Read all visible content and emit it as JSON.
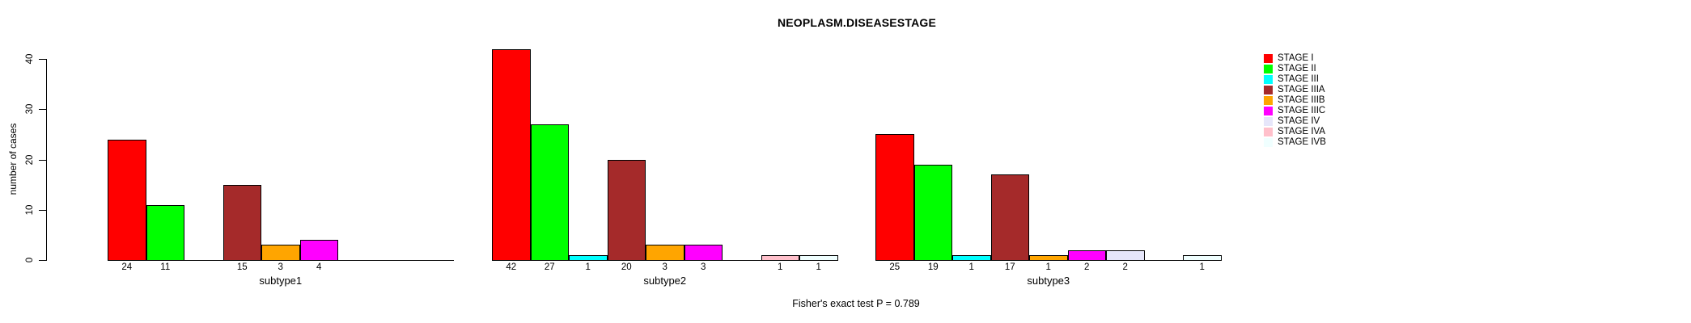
{
  "chart_data": {
    "type": "bar",
    "title": "NEOPLASM.DISEASESTAGE",
    "ylabel": "number of cases",
    "xlabel": "",
    "ylim": [
      0,
      40
    ],
    "yticks": [
      0,
      10,
      20,
      30,
      40
    ],
    "grid": false,
    "legend_position": "right",
    "bar_value_labels": "values shown below axis only for non-zero bars",
    "annotation": "Fisher's exact test P = 0.789",
    "categories": [
      "subtype1",
      "subtype2",
      "subtype3"
    ],
    "series": [
      {
        "name": "STAGE I",
        "color": "#FF0000",
        "values": [
          24,
          42,
          25
        ]
      },
      {
        "name": "STAGE II",
        "color": "#00FF00",
        "values": [
          11,
          27,
          19
        ]
      },
      {
        "name": "STAGE III",
        "color": "#00FFFF",
        "values": [
          0,
          1,
          1
        ]
      },
      {
        "name": "STAGE IIIA",
        "color": "#A52A2A",
        "values": [
          15,
          20,
          17
        ]
      },
      {
        "name": "STAGE IIIB",
        "color": "#FFA500",
        "values": [
          3,
          3,
          1
        ]
      },
      {
        "name": "STAGE IIIC",
        "color": "#FF00FF",
        "values": [
          4,
          3,
          2
        ]
      },
      {
        "name": "STAGE IV",
        "color": "#E6E6FA",
        "values": [
          0,
          0,
          2
        ]
      },
      {
        "name": "STAGE IVA",
        "color": "#FFC0CB",
        "values": [
          0,
          1,
          0
        ]
      },
      {
        "name": "STAGE IVB",
        "color": "#F0FFFF",
        "values": [
          0,
          1,
          1
        ]
      }
    ],
    "axis_color": "#000000",
    "background_color": "#FFFFFF"
  }
}
